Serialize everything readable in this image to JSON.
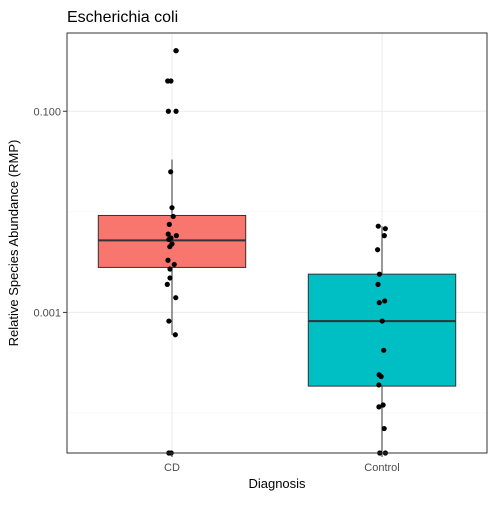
{
  "chart_data": {
    "type": "box",
    "title": "Escherichia coli",
    "xlabel": "Diagnosis",
    "ylabel": "Relative Species Abundance (RMP)",
    "y_scale": "log10",
    "ylim": [
      4e-05,
      0.6
    ],
    "yticks": [
      {
        "value": 0.001,
        "label": "0.001"
      },
      {
        "value": 0.1,
        "label": "0.100"
      }
    ],
    "y_minor_grid": [
      0.0001,
      0.01
    ],
    "grid": true,
    "categories": [
      "CD",
      "Control"
    ],
    "boxes": [
      {
        "category": "CD",
        "color": "#F8766D",
        "q1": 0.0028,
        "median": 0.0052,
        "q3": 0.0092,
        "whisker_low": 0.0006,
        "whisker_high": 0.033,
        "points": [
          0.4,
          0.4,
          0.2,
          0.2,
          0.1,
          0.1,
          0.025,
          0.011,
          0.009,
          0.0075,
          0.006,
          0.0058,
          0.0055,
          0.0053,
          0.0048,
          0.0045,
          0.0033,
          0.003,
          0.0027,
          0.0022,
          0.0019,
          0.0014,
          0.00082,
          0.0006,
          4e-05,
          4e-05
        ]
      },
      {
        "category": "Control",
        "color": "#00BFC4",
        "q1": 0.000185,
        "median": 0.00082,
        "q3": 0.0024,
        "whisker_low": 4e-05,
        "whisker_high": 0.0072,
        "points": [
          0.0072,
          0.0068,
          0.0058,
          0.0042,
          0.0024,
          0.0019,
          0.0013,
          0.00125,
          0.00082,
          0.00042,
          0.00024,
          0.00023,
          0.00019,
          0.00012,
          0.000115,
          7e-05,
          4e-05,
          4e-05
        ]
      }
    ]
  }
}
